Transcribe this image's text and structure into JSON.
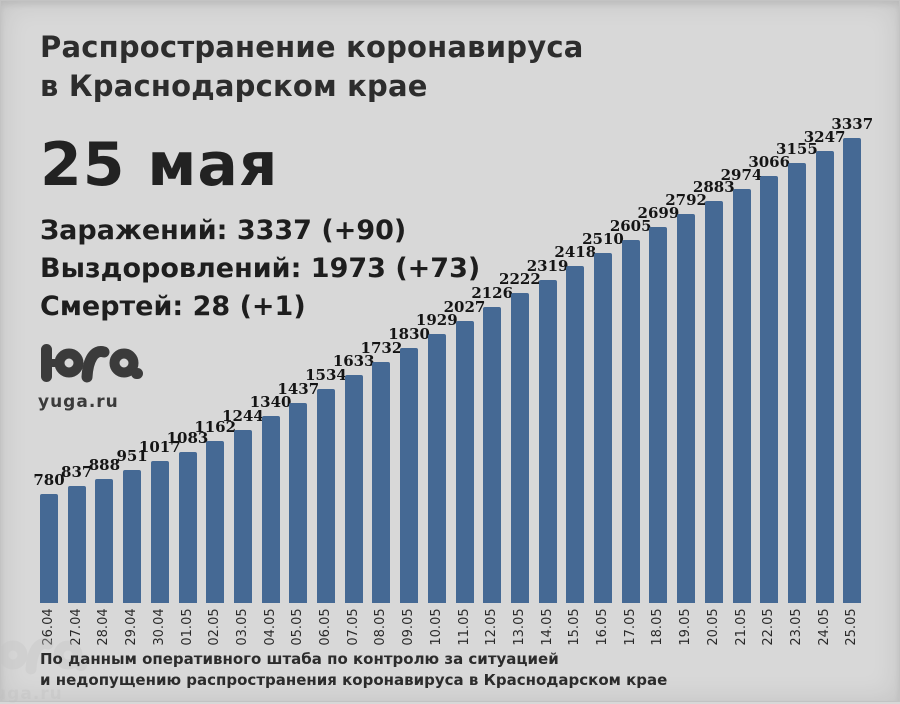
{
  "header": {
    "title_line1": "Распространение коронавируса",
    "title_line2": "в Краснодарском крае",
    "date": "25 мая",
    "stats": [
      "Заражений: 3337 (+90)",
      "Выздоровлений: 1973 (+73)",
      "Смертей: 28 (+1)"
    ]
  },
  "logo": {
    "text": "yuga.ru"
  },
  "footer": {
    "line1": "По данным оперативного штаба по контролю за ситуацией",
    "line2": "и недопущению распространения коронавируса в Краснодарском крае"
  },
  "chart_data": {
    "type": "bar",
    "title": "Распространение коронавируса в Краснодарском крае",
    "categories": [
      "26.04",
      "27.04",
      "28.04",
      "29.04",
      "30.04",
      "01.05",
      "02.05",
      "03.05",
      "04.05",
      "05.05",
      "06.05",
      "07.05",
      "08.05",
      "09.05",
      "10.05",
      "11.05",
      "12.05",
      "13.05",
      "14.05",
      "15.05",
      "16.05",
      "17.05",
      "18.05",
      "19.05",
      "20.05",
      "21.05",
      "22.05",
      "23.05",
      "24.05",
      "25.05"
    ],
    "values": [
      780,
      837,
      888,
      951,
      1017,
      1083,
      1162,
      1244,
      1340,
      1437,
      1534,
      1633,
      1732,
      1830,
      1929,
      2027,
      2126,
      2222,
      2319,
      2418,
      2510,
      2605,
      2699,
      2792,
      2883,
      2974,
      3066,
      3155,
      3247,
      3337
    ],
    "xlabel": "",
    "ylabel": "",
    "ylim": [
      0,
      3337
    ],
    "grid": false,
    "legend": false,
    "data_labels": true,
    "bar_color": "#456994",
    "background_color": "#d8d8d8",
    "label_color": "#141414",
    "tick_label_rotation": 90
  }
}
